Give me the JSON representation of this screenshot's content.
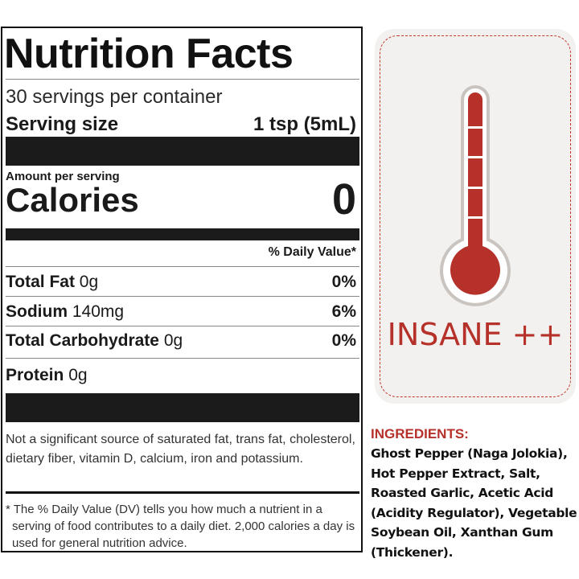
{
  "label": {
    "title": "Nutrition Facts",
    "servings_per_container": "30 servings per container",
    "serving_size_label": "Serving size",
    "serving_size_value": "1 tsp (5mL)",
    "amount_per_serving": "Amount per serving",
    "calories_label": "Calories",
    "calories_value": "0",
    "daily_value_header": "% Daily Value*",
    "nutrients": [
      {
        "name": "Total Fat",
        "amount": "0g",
        "dv": "0%"
      },
      {
        "name": "Sodium",
        "amount": "140mg",
        "dv": "6%"
      },
      {
        "name": "Total Carbohydrate",
        "amount": "0g",
        "dv": "0%"
      },
      {
        "name": "Protein",
        "amount": "0g",
        "dv": ""
      }
    ],
    "not_significant_note": "Not a significant source of saturated fat, trans fat, cholesterol, dietary fiber, vitamin D, calcium, iron and potassium.",
    "dv_footnote": "* The % Daily Value (DV) tells you how much a nutrient in a serving of food contributes to a daily diet. 2,000 calories a day is used for general nutrition advice."
  },
  "heat": {
    "level_label": "INSANE ++",
    "accent_color": "#b5312a",
    "icon": "thermometer-icon"
  },
  "ingredients": {
    "title": "INGREDIENTS:",
    "text": "Ghost Pepper (Naga Jolokia), Hot Pepper Extract, Salt, Roasted Garlic, Acetic Acid (Acidity Regulator), Vegetable Soybean Oil, Xanthan Gum (Thickener)."
  }
}
